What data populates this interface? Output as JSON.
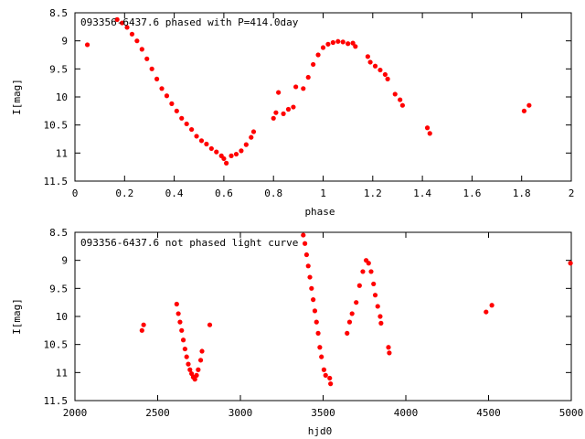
{
  "chart_data": [
    {
      "type": "scatter",
      "title": "093356-6437.6 phased with P=414.0day",
      "xlabel": "phase",
      "ylabel": "I[mag]",
      "xlim": [
        0,
        2
      ],
      "ylim": [
        8.5,
        11.5
      ],
      "y_inverted": true,
      "x_ticks": [
        "0",
        "0.2",
        "0.4",
        "0.6",
        "0.8",
        "1",
        "1.2",
        "1.4",
        "1.6",
        "1.8",
        "2"
      ],
      "y_ticks": [
        "8.5",
        "9",
        "9.5",
        "10",
        "10.5",
        "11",
        "11.5"
      ],
      "grid": false,
      "series": [
        {
          "color": "#ff0000",
          "points": [
            [
              0.05,
              9.07
            ],
            [
              0.17,
              8.62
            ],
            [
              0.19,
              8.68
            ],
            [
              0.21,
              8.76
            ],
            [
              0.23,
              8.88
            ],
            [
              0.25,
              9.0
            ],
            [
              0.27,
              9.15
            ],
            [
              0.29,
              9.32
            ],
            [
              0.31,
              9.5
            ],
            [
              0.33,
              9.68
            ],
            [
              0.35,
              9.85
            ],
            [
              0.37,
              9.98
            ],
            [
              0.39,
              10.12
            ],
            [
              0.41,
              10.25
            ],
            [
              0.43,
              10.38
            ],
            [
              0.45,
              10.48
            ],
            [
              0.47,
              10.58
            ],
            [
              0.49,
              10.7
            ],
            [
              0.51,
              10.78
            ],
            [
              0.53,
              10.84
            ],
            [
              0.55,
              10.92
            ],
            [
              0.57,
              10.98
            ],
            [
              0.59,
              11.05
            ],
            [
              0.6,
              11.1
            ],
            [
              0.61,
              11.18
            ],
            [
              0.63,
              11.05
            ],
            [
              0.65,
              11.02
            ],
            [
              0.67,
              10.96
            ],
            [
              0.69,
              10.85
            ],
            [
              0.71,
              10.72
            ],
            [
              0.72,
              10.62
            ],
            [
              0.8,
              10.38
            ],
            [
              0.81,
              10.28
            ],
            [
              0.82,
              9.92
            ],
            [
              0.84,
              10.3
            ],
            [
              0.86,
              10.22
            ],
            [
              0.88,
              10.18
            ],
            [
              0.89,
              9.82
            ],
            [
              0.92,
              9.85
            ],
            [
              0.94,
              9.65
            ],
            [
              0.96,
              9.42
            ],
            [
              0.98,
              9.25
            ],
            [
              1.0,
              9.12
            ],
            [
              1.02,
              9.06
            ],
            [
              1.04,
              9.03
            ],
            [
              1.06,
              9.01
            ],
            [
              1.08,
              9.02
            ],
            [
              1.1,
              9.05
            ],
            [
              1.12,
              9.04
            ],
            [
              1.13,
              9.1
            ],
            [
              1.18,
              9.28
            ],
            [
              1.19,
              9.38
            ],
            [
              1.21,
              9.45
            ],
            [
              1.23,
              9.52
            ],
            [
              1.25,
              9.6
            ],
            [
              1.26,
              9.68
            ],
            [
              1.29,
              9.95
            ],
            [
              1.31,
              10.05
            ],
            [
              1.32,
              10.15
            ],
            [
              1.42,
              10.55
            ],
            [
              1.43,
              10.65
            ],
            [
              1.81,
              10.25
            ],
            [
              1.83,
              10.15
            ]
          ]
        }
      ]
    },
    {
      "type": "scatter",
      "title": "093356-6437.6 not phased light curve",
      "xlabel": "hjd0",
      "ylabel": "I[mag]",
      "xlim": [
        2000,
        5000
      ],
      "ylim": [
        8.5,
        11.5
      ],
      "y_inverted": true,
      "x_ticks": [
        "2000",
        "2500",
        "3000",
        "3500",
        "4000",
        "4500",
        "5000"
      ],
      "y_ticks": [
        "8.5",
        "9",
        "9.5",
        "10",
        "10.5",
        "11",
        "11.5"
      ],
      "grid": false,
      "series": [
        {
          "color": "#ff0000",
          "points": [
            [
              2405,
              10.25
            ],
            [
              2415,
              10.15
            ],
            [
              2615,
              9.78
            ],
            [
              2625,
              9.95
            ],
            [
              2635,
              10.1
            ],
            [
              2645,
              10.25
            ],
            [
              2655,
              10.42
            ],
            [
              2665,
              10.58
            ],
            [
              2675,
              10.72
            ],
            [
              2685,
              10.85
            ],
            [
              2695,
              10.95
            ],
            [
              2705,
              11.02
            ],
            [
              2715,
              11.08
            ],
            [
              2725,
              11.12
            ],
            [
              2735,
              11.05
            ],
            [
              2745,
              10.95
            ],
            [
              2760,
              10.78
            ],
            [
              2768,
              10.62
            ],
            [
              2815,
              10.15
            ],
            [
              3380,
              8.55
            ],
            [
              3390,
              8.7
            ],
            [
              3400,
              8.9
            ],
            [
              3410,
              9.1
            ],
            [
              3420,
              9.3
            ],
            [
              3430,
              9.5
            ],
            [
              3440,
              9.7
            ],
            [
              3450,
              9.9
            ],
            [
              3460,
              10.1
            ],
            [
              3470,
              10.3
            ],
            [
              3480,
              10.55
            ],
            [
              3490,
              10.72
            ],
            [
              3505,
              10.95
            ],
            [
              3515,
              11.05
            ],
            [
              3540,
              11.1
            ],
            [
              3545,
              11.2
            ],
            [
              3645,
              10.3
            ],
            [
              3660,
              10.1
            ],
            [
              3675,
              9.95
            ],
            [
              3700,
              9.75
            ],
            [
              3720,
              9.45
            ],
            [
              3740,
              9.2
            ],
            [
              3760,
              9.0
            ],
            [
              3775,
              9.05
            ],
            [
              3790,
              9.2
            ],
            [
              3805,
              9.42
            ],
            [
              3815,
              9.62
            ],
            [
              3830,
              9.82
            ],
            [
              3845,
              10.0
            ],
            [
              3850,
              10.12
            ],
            [
              3895,
              10.55
            ],
            [
              3900,
              10.65
            ],
            [
              4485,
              9.92
            ],
            [
              4520,
              9.8
            ],
            [
              4995,
              9.05
            ]
          ]
        }
      ]
    }
  ]
}
